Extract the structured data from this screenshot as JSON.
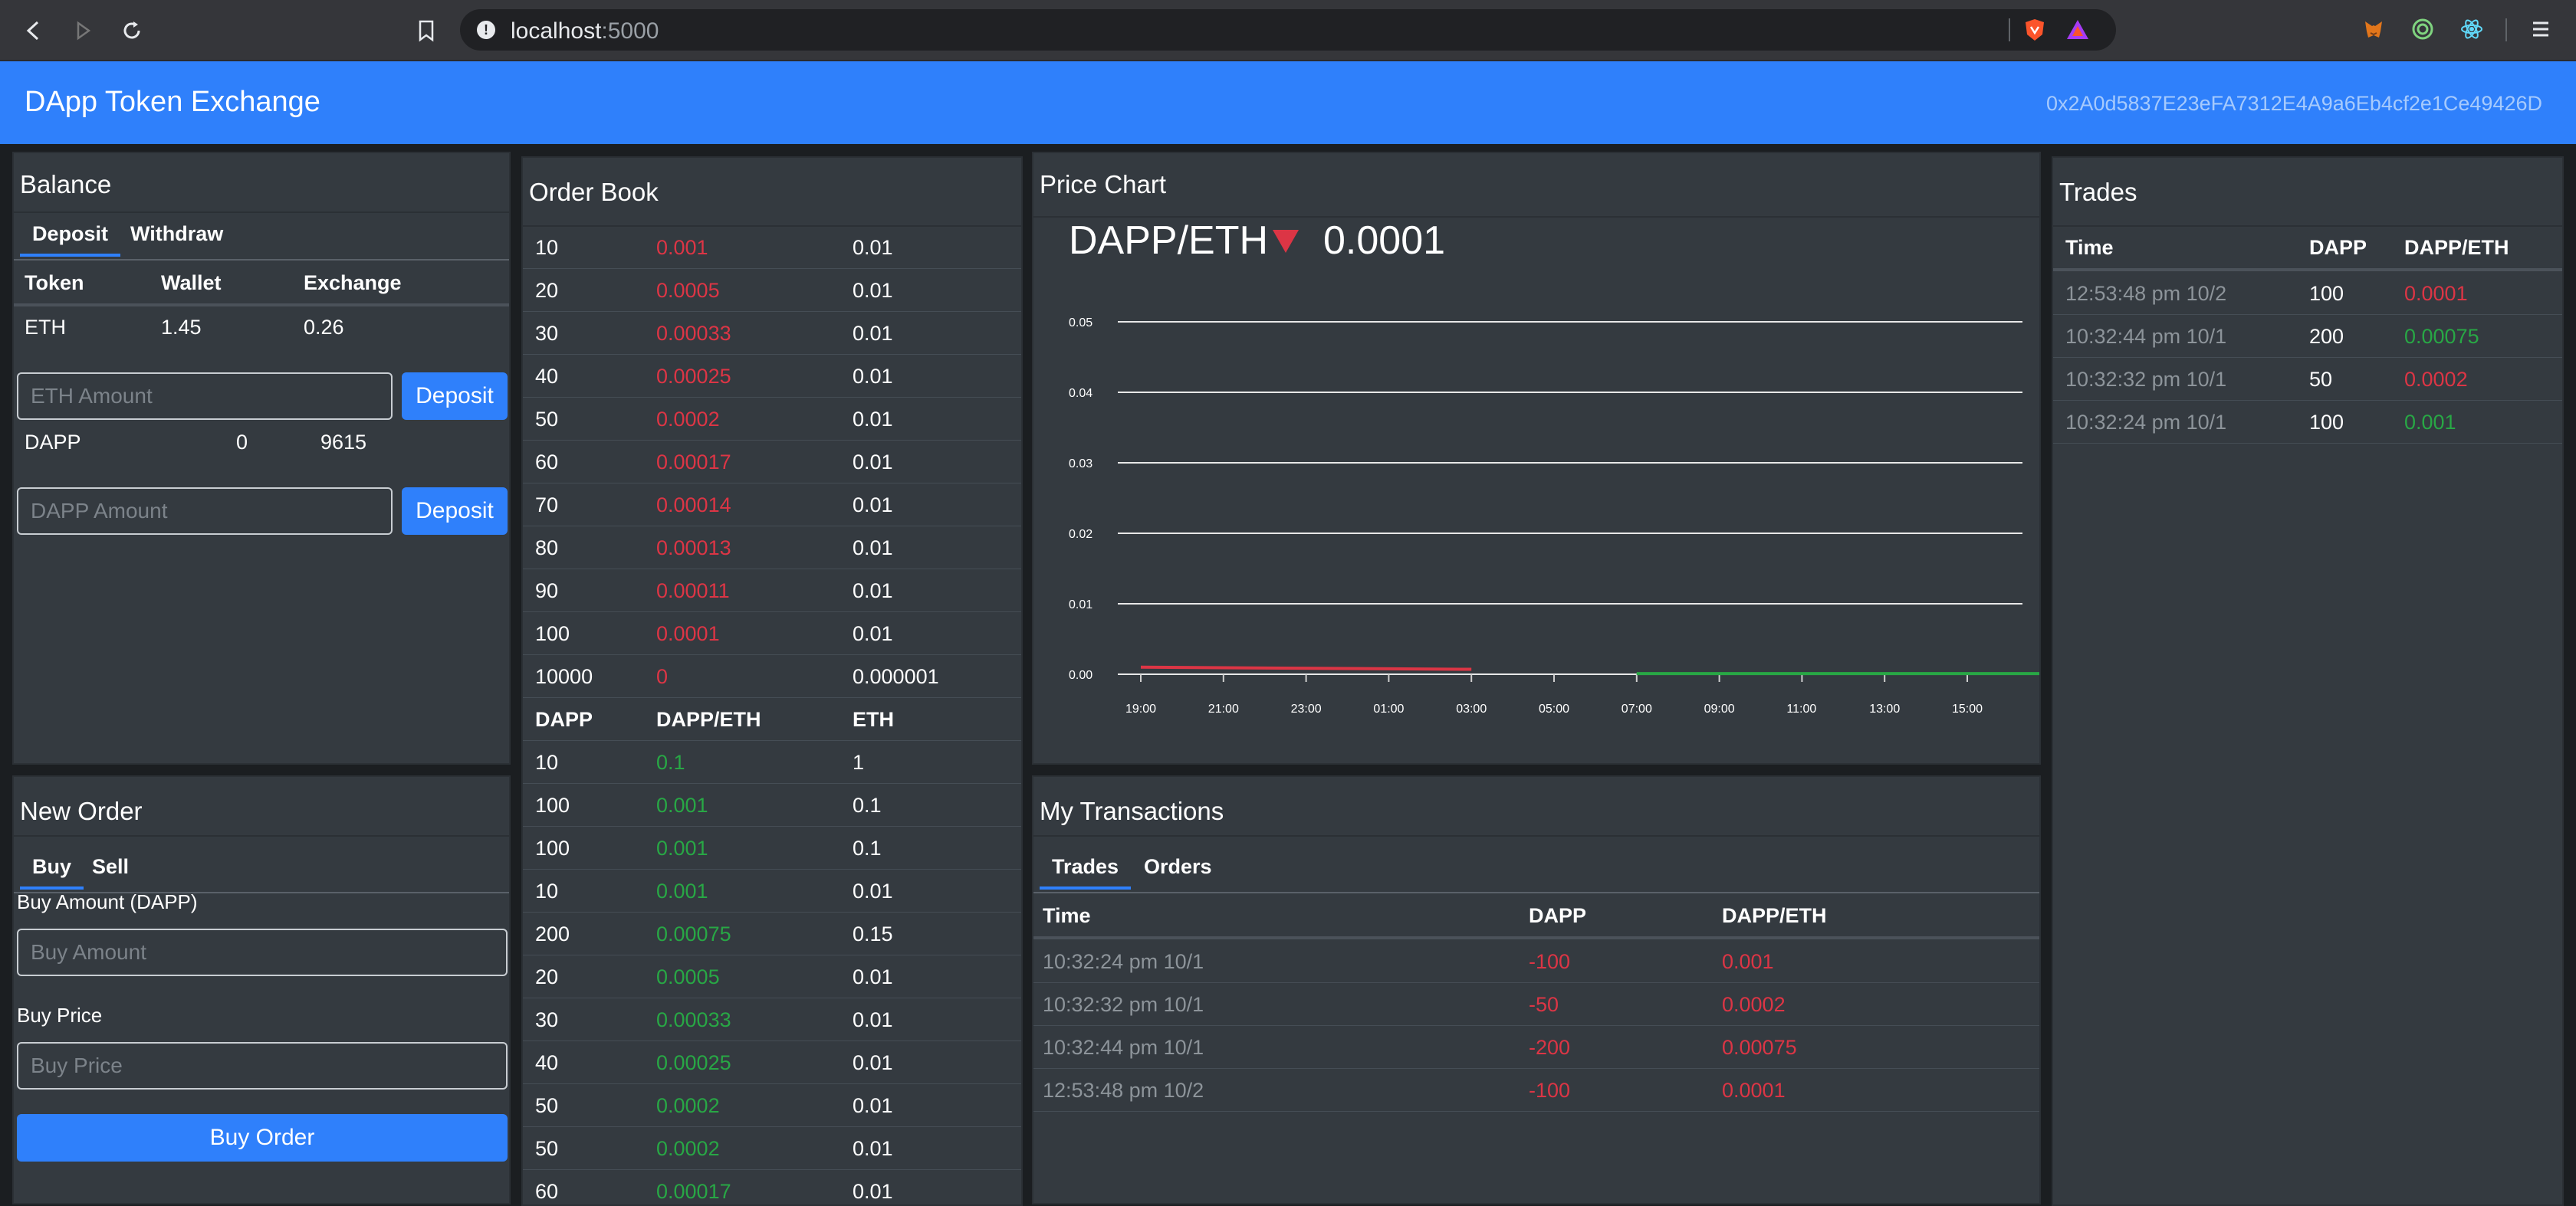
{
  "browser": {
    "url_host": "localhost",
    "url_port": ":5000"
  },
  "app": {
    "brand": "DApp Token Exchange",
    "account": "0x2A0d5837E23eFA7312E4A9a6Eb4cf2e1Ce49426D"
  },
  "balance": {
    "title": "Balance",
    "tabs": [
      "Deposit",
      "Withdraw"
    ],
    "columns": [
      "Token",
      "Wallet",
      "Exchange"
    ],
    "eth": {
      "token": "ETH",
      "wallet": "1.45",
      "exchange": "0.26"
    },
    "eth_placeholder": "ETH Amount",
    "dapp": {
      "token": "DAPP",
      "wallet": "0",
      "exchange": "9615"
    },
    "dapp_placeholder": "DAPP Amount",
    "deposit_label": "Deposit"
  },
  "new_order": {
    "title": "New Order",
    "tabs": [
      "Buy",
      "Sell"
    ],
    "amount_label": "Buy Amount (DAPP)",
    "amount_placeholder": "Buy Amount",
    "price_label": "Buy Price",
    "price_placeholder": "Buy Price",
    "submit_label": "Buy Order"
  },
  "order_book": {
    "title": "Order Book",
    "sell_orders": [
      [
        "10",
        "0.001",
        "0.01"
      ],
      [
        "20",
        "0.0005",
        "0.01"
      ],
      [
        "30",
        "0.00033",
        "0.01"
      ],
      [
        "40",
        "0.00025",
        "0.01"
      ],
      [
        "50",
        "0.0002",
        "0.01"
      ],
      [
        "60",
        "0.00017",
        "0.01"
      ],
      [
        "70",
        "0.00014",
        "0.01"
      ],
      [
        "80",
        "0.00013",
        "0.01"
      ],
      [
        "90",
        "0.00011",
        "0.01"
      ],
      [
        "100",
        "0.0001",
        "0.01"
      ],
      [
        "10000",
        "0",
        "0.000001"
      ]
    ],
    "columns": [
      "DAPP",
      "DAPP/ETH",
      "ETH"
    ],
    "buy_orders": [
      [
        "10",
        "0.1",
        "1"
      ],
      [
        "100",
        "0.001",
        "0.1"
      ],
      [
        "100",
        "0.001",
        "0.1"
      ],
      [
        "10",
        "0.001",
        "0.01"
      ],
      [
        "200",
        "0.00075",
        "0.15"
      ],
      [
        "20",
        "0.0005",
        "0.01"
      ],
      [
        "30",
        "0.00033",
        "0.01"
      ],
      [
        "40",
        "0.00025",
        "0.01"
      ],
      [
        "50",
        "0.0002",
        "0.01"
      ],
      [
        "50",
        "0.0002",
        "0.01"
      ],
      [
        "60",
        "0.00017",
        "0.01"
      ]
    ]
  },
  "price_chart": {
    "title": "Price Chart",
    "pair": "DAPP/ETH",
    "trend": "down",
    "last_price": "0.0001"
  },
  "chart_data": {
    "type": "line",
    "title": "",
    "xlabel": "",
    "ylabel": "",
    "x_ticks": [
      "19:00",
      "21:00",
      "23:00",
      "01:00",
      "03:00",
      "05:00",
      "07:00",
      "09:00",
      "11:00",
      "13:00",
      "15:00"
    ],
    "y_ticks": [
      "0.00",
      "0.01",
      "0.02",
      "0.03",
      "0.04",
      "0.05"
    ],
    "ylim": [
      0,
      0.05
    ],
    "grid": true,
    "series": [
      {
        "color": "#dc3545",
        "x": [
          "19:00",
          "03:00"
        ],
        "y": [
          0.001,
          0.0007
        ]
      },
      {
        "color": "#28a745",
        "x": [
          "07:00",
          "17:00"
        ],
        "y": [
          0.0001,
          0.0001
        ]
      }
    ]
  },
  "transactions": {
    "title": "My Transactions",
    "tabs": [
      "Trades",
      "Orders"
    ],
    "columns": [
      "Time",
      "DAPP",
      "DAPP/ETH"
    ],
    "rows": [
      [
        "10:32:24 pm 10/1",
        "-100",
        "0.001"
      ],
      [
        "10:32:32 pm 10/1",
        "-50",
        "0.0002"
      ],
      [
        "10:32:44 pm 10/1",
        "-200",
        "0.00075"
      ],
      [
        "12:53:48 pm 10/2",
        "-100",
        "0.0001"
      ]
    ]
  },
  "trades": {
    "title": "Trades",
    "columns": [
      "Time",
      "DAPP",
      "DAPP/ETH"
    ],
    "rows": [
      {
        "time": "12:53:48 pm 10/2",
        "amount": "100",
        "price": "0.0001",
        "side": "sell"
      },
      {
        "time": "10:32:44 pm 10/1",
        "amount": "200",
        "price": "0.00075",
        "side": "buy"
      },
      {
        "time": "10:32:32 pm 10/1",
        "amount": "50",
        "price": "0.0002",
        "side": "sell"
      },
      {
        "time": "10:32:24 pm 10/1",
        "amount": "100",
        "price": "0.001",
        "side": "buy"
      }
    ]
  },
  "colors": {
    "primary": "#2f80fb",
    "card": "#343a40",
    "background": "#1b1e21",
    "danger": "#dc3545",
    "success": "#28a745"
  },
  "icons": [
    "back-icon",
    "forward-icon",
    "reload-icon",
    "bookmark-icon",
    "info-icon",
    "brave-shield-icon",
    "brave-rewards-icon",
    "metamask-icon",
    "extension-target-icon",
    "react-devtools-icon",
    "menu-icon",
    "triangle-down-icon"
  ]
}
